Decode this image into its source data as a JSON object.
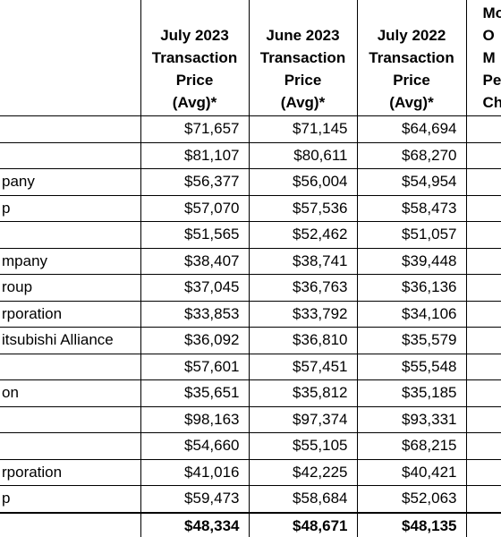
{
  "table": {
    "columns": [
      {
        "lines": [
          "July 2023",
          "Transaction",
          "Price",
          "(Avg)*"
        ]
      },
      {
        "lines": [
          "June 2023",
          "Transaction",
          "Price",
          "(Avg)*"
        ]
      },
      {
        "lines": [
          "July 2022",
          "Transaction",
          "Price",
          "(Avg)*"
        ]
      },
      {
        "lines": [
          "Mo",
          "O",
          "M",
          "Pe",
          "Ch"
        ]
      }
    ],
    "rows": [
      {
        "prices": [
          "$71,657",
          "$71,145",
          "$64,694"
        ]
      },
      {
        "prices": [
          "$81,107",
          "$80,611",
          "$68,270"
        ]
      },
      {
        "name": "pany",
        "prices": [
          "$56,377",
          "$56,004",
          "$54,954"
        ]
      },
      {
        "name": "p",
        "prices": [
          "$57,070",
          "$57,536",
          "$58,473"
        ]
      },
      {
        "prices": [
          "$51,565",
          "$52,462",
          "$51,057"
        ]
      },
      {
        "name": "mpany",
        "prices": [
          "$38,407",
          "$38,741",
          "$39,448"
        ]
      },
      {
        "name": "roup",
        "prices": [
          "$37,045",
          "$36,763",
          "$36,136"
        ]
      },
      {
        "name": "rporation",
        "prices": [
          "$33,853",
          "$33,792",
          "$34,106"
        ]
      },
      {
        "name": "itsubishi Alliance",
        "prices": [
          "$36,092",
          "$36,810",
          "$35,579"
        ]
      },
      {
        "prices": [
          "$57,601",
          "$57,451",
          "$55,548"
        ]
      },
      {
        "name": "on",
        "prices": [
          "$35,651",
          "$35,812",
          "$35,185"
        ]
      },
      {
        "prices": [
          "$98,163",
          "$97,374",
          "$93,331"
        ]
      },
      {
        "prices": [
          "$54,660",
          "$55,105",
          "$68,215"
        ]
      },
      {
        "name": "rporation",
        "prices": [
          "$41,016",
          "$42,225",
          "$40,421"
        ]
      },
      {
        "name": "p",
        "prices": [
          "$59,473",
          "$58,684",
          "$52,063"
        ]
      }
    ],
    "total": [
      "$48,334",
      "$48,671",
      "$48,135"
    ]
  }
}
